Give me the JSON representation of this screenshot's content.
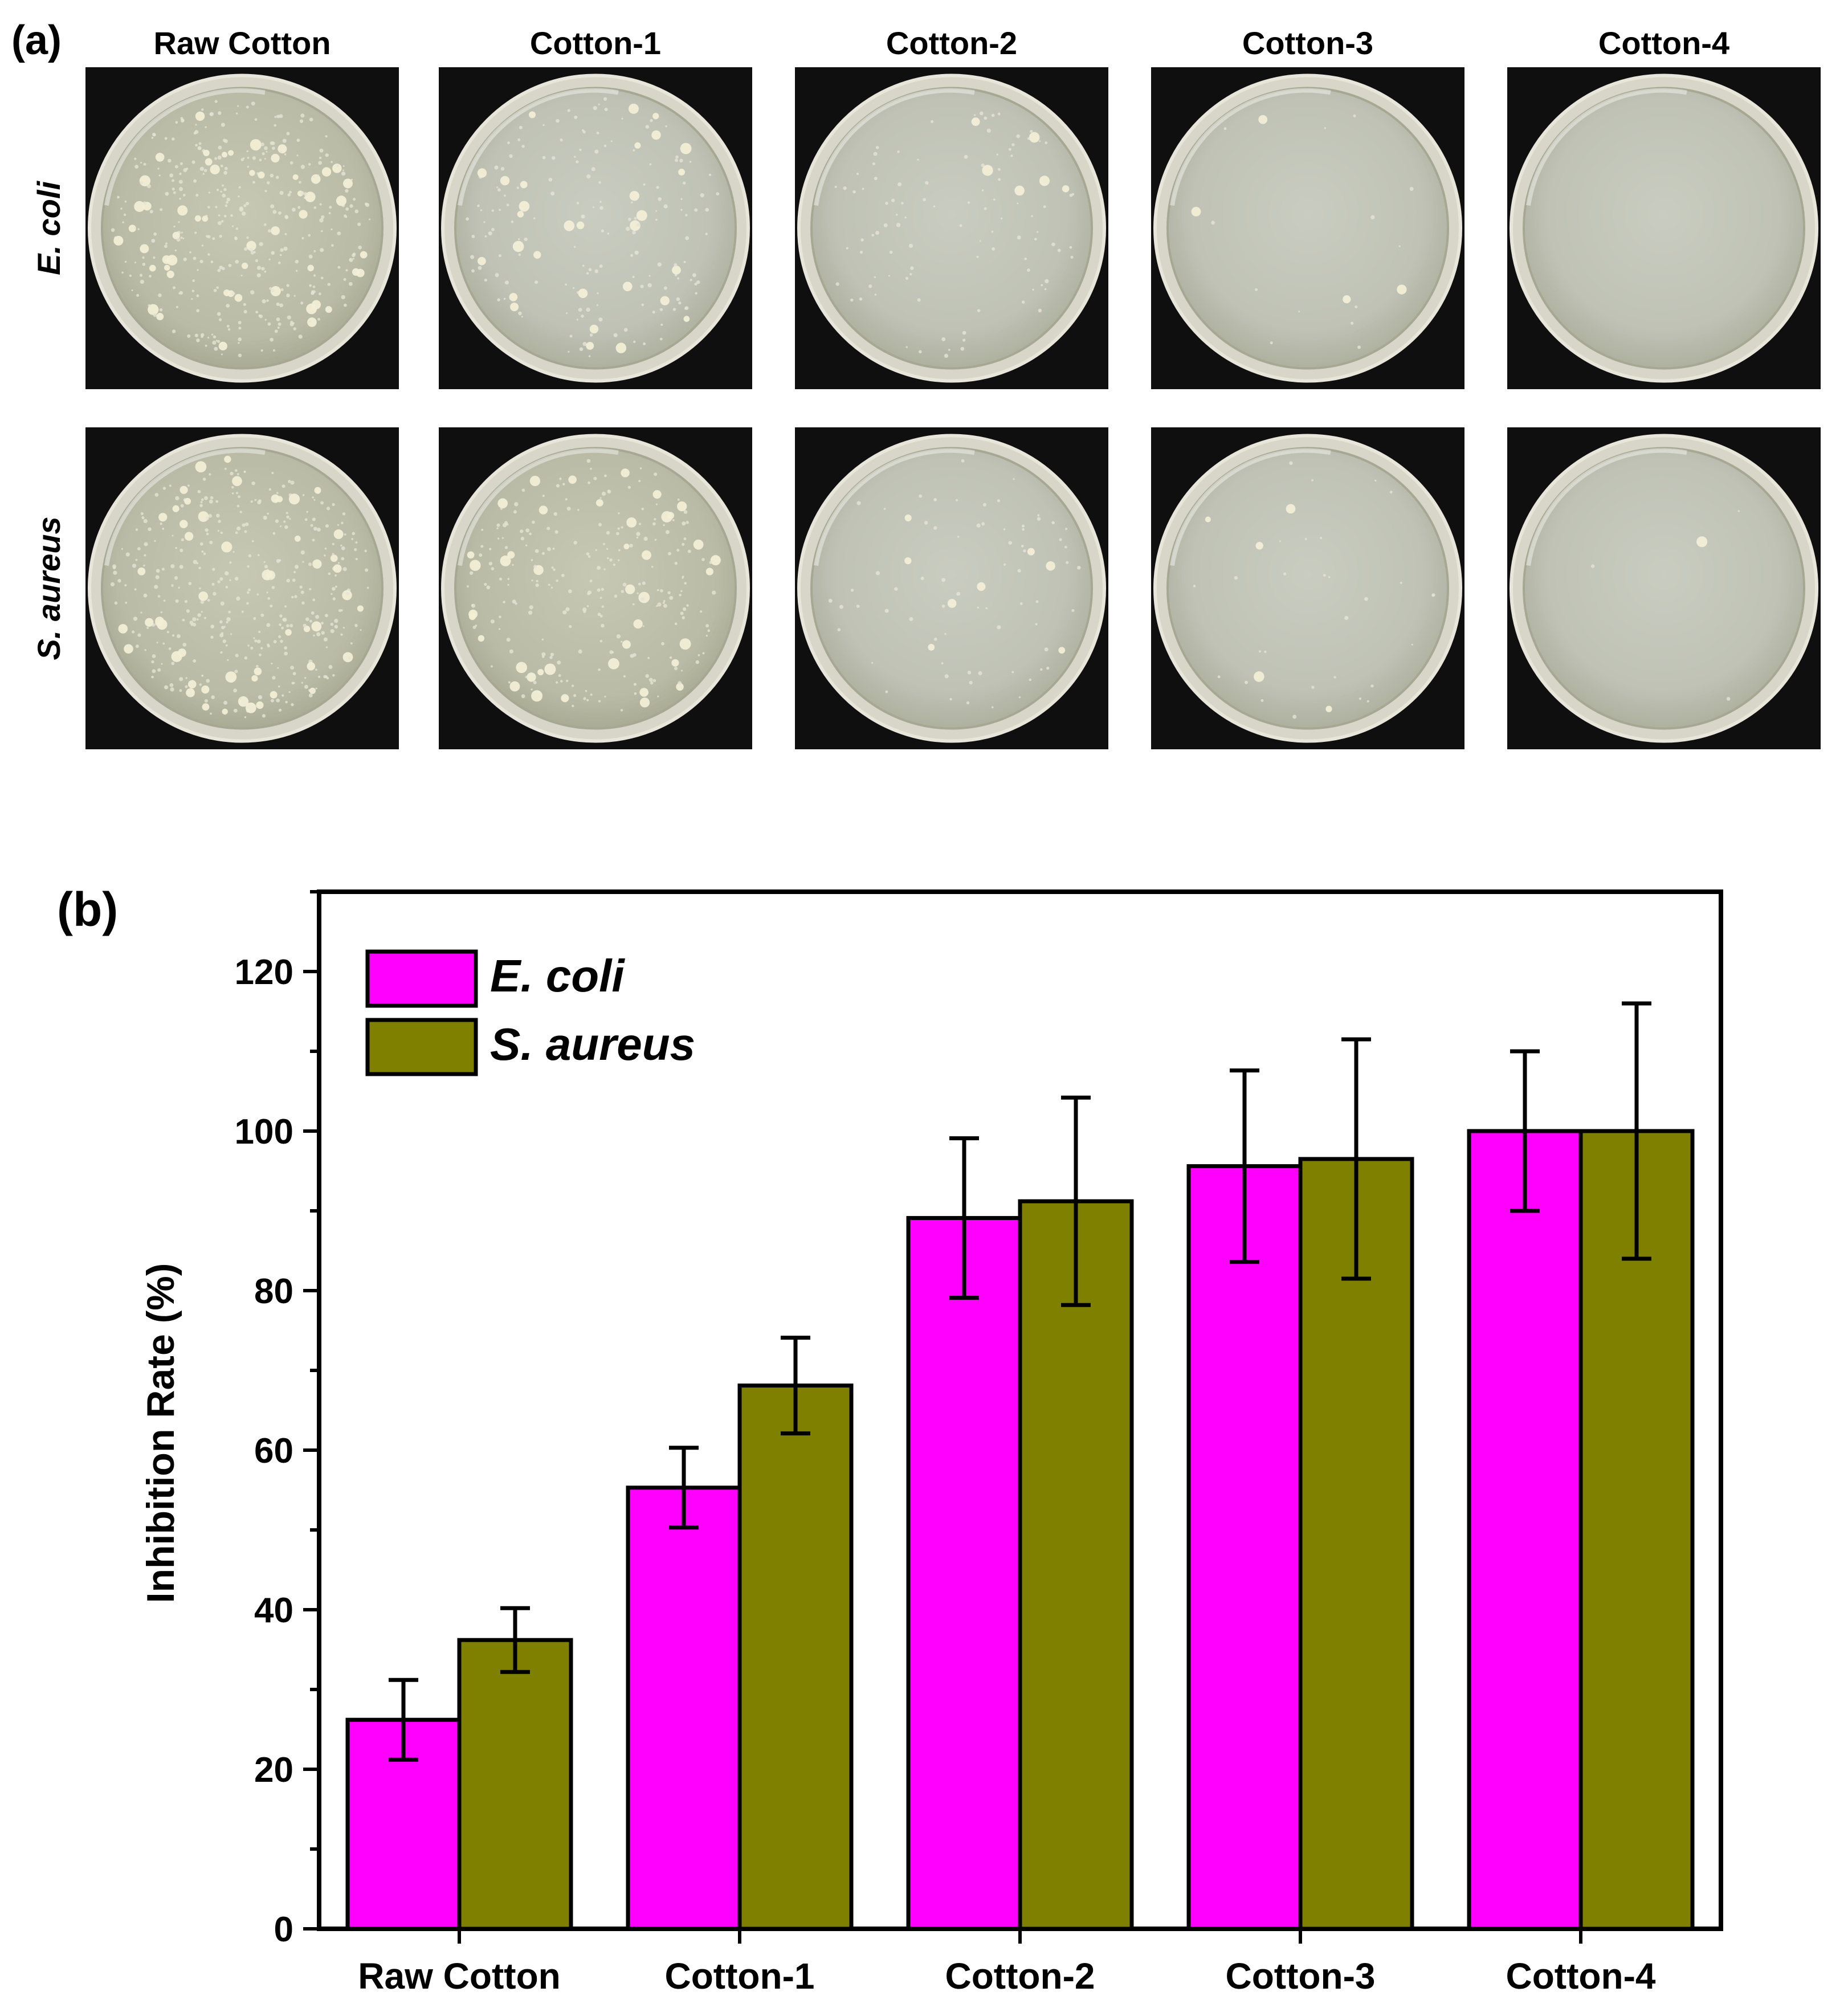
{
  "panel_a": {
    "label": "(a)",
    "columns": [
      "Raw Cotton",
      "Cotton-1",
      "Cotton-2",
      "Cotton-3",
      "Cotton-4"
    ],
    "rows": [
      "E. coli",
      "S. aureus"
    ],
    "colony_density": [
      [
        1.0,
        0.45,
        0.25,
        0.04,
        0.0
      ],
      [
        1.0,
        0.65,
        0.18,
        0.08,
        0.01
      ]
    ]
  },
  "panel_b": {
    "label": "(b)"
  },
  "chart_data": {
    "type": "bar",
    "categories": [
      "Raw Cotton",
      "Cotton-1",
      "Cotton-2",
      "Cotton-3",
      "Cotton-4"
    ],
    "series": [
      {
        "name": "E. coli",
        "color": "#ff00ff",
        "values": [
          26.2,
          55.3,
          89.1,
          95.6,
          100
        ],
        "errors": [
          5.0,
          5.0,
          10.0,
          12.0,
          10.0
        ]
      },
      {
        "name": "S. aureus",
        "color": "#808000",
        "values": [
          36.2,
          68.1,
          91.2,
          96.5,
          100
        ],
        "errors": [
          4.0,
          6.0,
          13.0,
          15.0,
          16.0
        ]
      }
    ],
    "xlabel": "",
    "ylabel": "Inhibition Rate (%)",
    "ylim": [
      0,
      130
    ],
    "yticks": [
      0,
      20,
      40,
      60,
      80,
      100,
      120
    ],
    "y_minor_step": 10,
    "legend_position": "top-left",
    "grid": false
  }
}
